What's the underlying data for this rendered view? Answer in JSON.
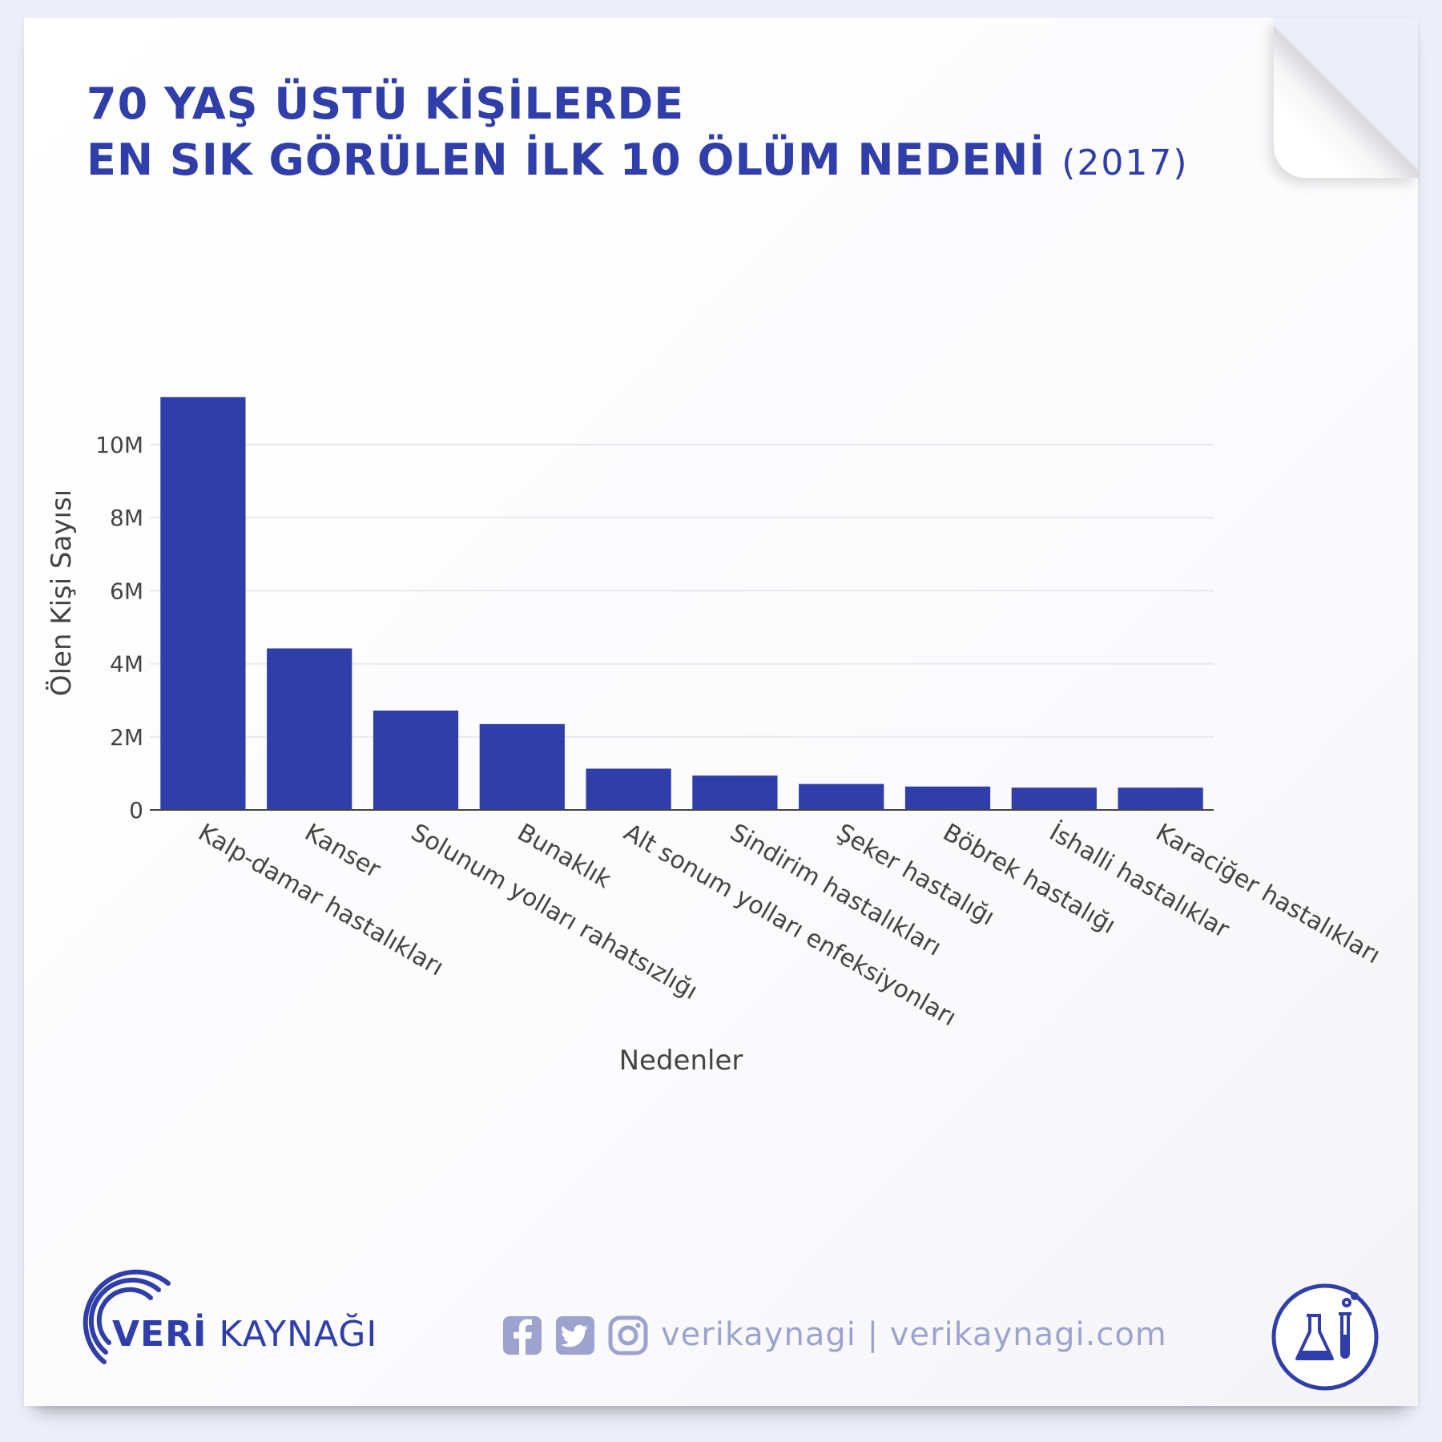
{
  "header": {
    "title_line1": "70 YAŞ ÜSTÜ KİŞİLERDE",
    "title_line2": "EN SIK GÖRÜLEN İLK 10 ÖLÜM NEDENİ",
    "year": "(2017)"
  },
  "chart_data": {
    "type": "bar",
    "title": "",
    "xlabel": "Nedenler",
    "ylabel": "Ölen Kişi Sayısı",
    "ylim": [
      0,
      11500000
    ],
    "yticks": [
      0,
      2000000,
      4000000,
      6000000,
      8000000,
      10000000
    ],
    "ytick_labels": [
      "0",
      "2M",
      "4M",
      "6M",
      "8M",
      "10M"
    ],
    "grid": true,
    "color": "#2f3ea9",
    "categories": [
      "Kalp-damar hastalıkları",
      "Kanser",
      "Solunum yolları rahatsızlığı",
      "Bunaklık",
      "Alt sonum yolları enfeksiyonları",
      "Sindirim hastalıkları",
      "Şeker hastalığı",
      "Böbrek hastalığı",
      "İshalli hastalıklar",
      "Karaciğer hastalıkları"
    ],
    "values": [
      11300000,
      4420000,
      2720000,
      2350000,
      1130000,
      940000,
      710000,
      640000,
      610000,
      610000
    ]
  },
  "footer": {
    "brand_bold": "VERİ",
    "brand_light": " KAYNAĞI",
    "contact": "verikaynagi | verikaynagi.com",
    "icons": [
      "facebook-icon",
      "twitter-icon",
      "instagram-icon",
      "lab-flask-icon"
    ],
    "accent_color": "#2f3ea9",
    "muted_color": "#9ca3cf"
  }
}
